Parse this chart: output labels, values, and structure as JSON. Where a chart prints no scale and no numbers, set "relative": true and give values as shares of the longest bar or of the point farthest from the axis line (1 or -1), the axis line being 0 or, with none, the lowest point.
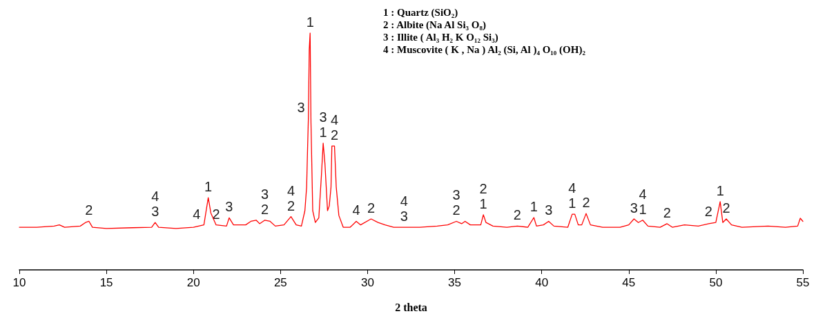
{
  "chart_data": {
    "type": "line",
    "relative": true,
    "xlabel": "2 theta",
    "xlim": [
      10,
      55
    ],
    "xticks": [
      10,
      15,
      20,
      25,
      30,
      35,
      40,
      45,
      50,
      55
    ],
    "grid": false,
    "line_style": "solid",
    "series": [
      {
        "color": "#ff0000",
        "x": [
          10.0,
          11.0,
          12.0,
          12.3,
          12.6,
          13.5,
          13.8,
          14.0,
          14.2,
          15.0,
          16.5,
          17.6,
          17.8,
          18.0,
          19.0,
          20.0,
          20.6,
          20.85,
          21.0,
          21.3,
          21.9,
          22.05,
          22.3,
          23.0,
          23.3,
          23.6,
          23.8,
          24.1,
          24.4,
          24.7,
          25.2,
          25.6,
          25.9,
          26.2,
          26.4,
          26.5,
          26.55,
          26.6,
          26.65,
          26.7,
          26.75,
          26.85,
          27.0,
          27.2,
          27.35,
          27.45,
          27.55,
          27.7,
          27.8,
          27.9,
          27.95,
          28.1,
          28.2,
          28.35,
          28.6,
          29.0,
          29.35,
          29.6,
          30.2,
          30.6,
          31.0,
          31.5,
          32.1,
          32.5,
          33.0,
          34.0,
          34.6,
          35.1,
          35.4,
          35.6,
          35.9,
          36.5,
          36.65,
          36.8,
          37.2,
          38.0,
          38.6,
          39.2,
          39.55,
          39.7,
          40.1,
          40.4,
          40.7,
          41.5,
          41.75,
          41.9,
          42.1,
          42.3,
          42.55,
          42.8,
          43.5,
          44.5,
          45.0,
          45.3,
          45.55,
          45.8,
          46.1,
          46.8,
          47.2,
          47.5,
          48.2,
          49.0,
          49.6,
          50.0,
          50.25,
          50.4,
          50.6,
          50.9,
          51.5,
          53.0,
          54.0,
          54.7,
          54.85,
          55.0
        ],
        "values": [
          0.18,
          0.18,
          0.185,
          0.19,
          0.18,
          0.185,
          0.2,
          0.205,
          0.18,
          0.175,
          0.178,
          0.18,
          0.2,
          0.18,
          0.175,
          0.18,
          0.19,
          0.305,
          0.24,
          0.19,
          0.185,
          0.22,
          0.19,
          0.19,
          0.205,
          0.21,
          0.195,
          0.21,
          0.205,
          0.185,
          0.19,
          0.225,
          0.19,
          0.185,
          0.25,
          0.35,
          0.5,
          0.64,
          0.93,
          1.0,
          0.62,
          0.25,
          0.2,
          0.22,
          0.4,
          0.535,
          0.45,
          0.25,
          0.27,
          0.35,
          0.523,
          0.523,
          0.35,
          0.23,
          0.18,
          0.18,
          0.205,
          0.19,
          0.215,
          0.2,
          0.19,
          0.18,
          0.18,
          0.18,
          0.18,
          0.185,
          0.19,
          0.205,
          0.195,
          0.205,
          0.19,
          0.19,
          0.233,
          0.2,
          0.185,
          0.18,
          0.185,
          0.18,
          0.221,
          0.185,
          0.19,
          0.205,
          0.185,
          0.18,
          0.235,
          0.235,
          0.19,
          0.19,
          0.238,
          0.19,
          0.18,
          0.18,
          0.19,
          0.215,
          0.2,
          0.21,
          0.185,
          0.18,
          0.195,
          0.18,
          0.19,
          0.185,
          0.195,
          0.2,
          0.288,
          0.2,
          0.215,
          0.19,
          0.18,
          0.185,
          0.18,
          0.185,
          0.218,
          0.205
        ]
      }
    ],
    "annotations": [
      "1 : Quartz (SiO₂)",
      "2 : Albite (Na Al Si₃ O₈)",
      "3 : Illite ( Al₃ H₂ K O₁₂ Si₃)",
      "4 : Muscovite ( K , Na ) Al₂ (Si, Al )₄ O₁₀ (OH)₂",
      {
        "text": "2",
        "x": 14.0,
        "y": 0.205
      },
      {
        "text": "3",
        "x": 17.8,
        "y": 0.2
      },
      {
        "text": "4",
        "x": 17.8,
        "y": 0.2
      },
      {
        "text": "4",
        "x": 20.6,
        "y": 0.19
      },
      {
        "text": "1",
        "x": 20.85,
        "y": 0.305
      },
      {
        "text": "2",
        "x": 21.3,
        "y": 0.19
      },
      {
        "text": "3",
        "x": 22.05,
        "y": 0.22
      },
      {
        "text": "2",
        "x": 24.1,
        "y": 0.21
      },
      {
        "text": "3",
        "x": 24.1,
        "y": 0.21
      },
      {
        "text": "2",
        "x": 25.6,
        "y": 0.225
      },
      {
        "text": "4",
        "x": 25.6,
        "y": 0.225
      },
      {
        "text": "1",
        "x": 26.7,
        "y": 1.0
      },
      {
        "text": "3",
        "x": 26.6,
        "y": 0.64
      },
      {
        "text": "1",
        "x": 27.45,
        "y": 0.535
      },
      {
        "text": "3",
        "x": 27.45,
        "y": 0.535
      },
      {
        "text": "2",
        "x": 28.1,
        "y": 0.523
      },
      {
        "text": "4",
        "x": 28.1,
        "y": 0.523
      },
      {
        "text": "4",
        "x": 29.35,
        "y": 0.205
      },
      {
        "text": "2",
        "x": 30.2,
        "y": 0.215
      },
      {
        "text": "3",
        "x": 32.1,
        "y": 0.18
      },
      {
        "text": "4",
        "x": 32.1,
        "y": 0.18
      },
      {
        "text": "2",
        "x": 35.1,
        "y": 0.205
      },
      {
        "text": "3",
        "x": 35.1,
        "y": 0.205
      },
      {
        "text": "1",
        "x": 36.65,
        "y": 0.233
      },
      {
        "text": "2",
        "x": 36.65,
        "y": 0.233
      },
      {
        "text": "2",
        "x": 38.6,
        "y": 0.185
      },
      {
        "text": "1",
        "x": 39.55,
        "y": 0.221
      },
      {
        "text": "3",
        "x": 40.4,
        "y": 0.205
      },
      {
        "text": "1",
        "x": 41.75,
        "y": 0.235
      },
      {
        "text": "4",
        "x": 41.75,
        "y": 0.235
      },
      {
        "text": "2",
        "x": 42.55,
        "y": 0.238
      },
      {
        "text": "3",
        "x": 45.3,
        "y": 0.215
      },
      {
        "text": "1",
        "x": 45.8,
        "y": 0.21
      },
      {
        "text": "4",
        "x": 45.8,
        "y": 0.21
      },
      {
        "text": "2",
        "x": 47.2,
        "y": 0.195
      },
      {
        "text": "2",
        "x": 50.0,
        "y": 0.2
      },
      {
        "text": "1",
        "x": 50.25,
        "y": 0.288
      },
      {
        "text": "2",
        "x": 50.6,
        "y": 0.215
      }
    ]
  }
}
